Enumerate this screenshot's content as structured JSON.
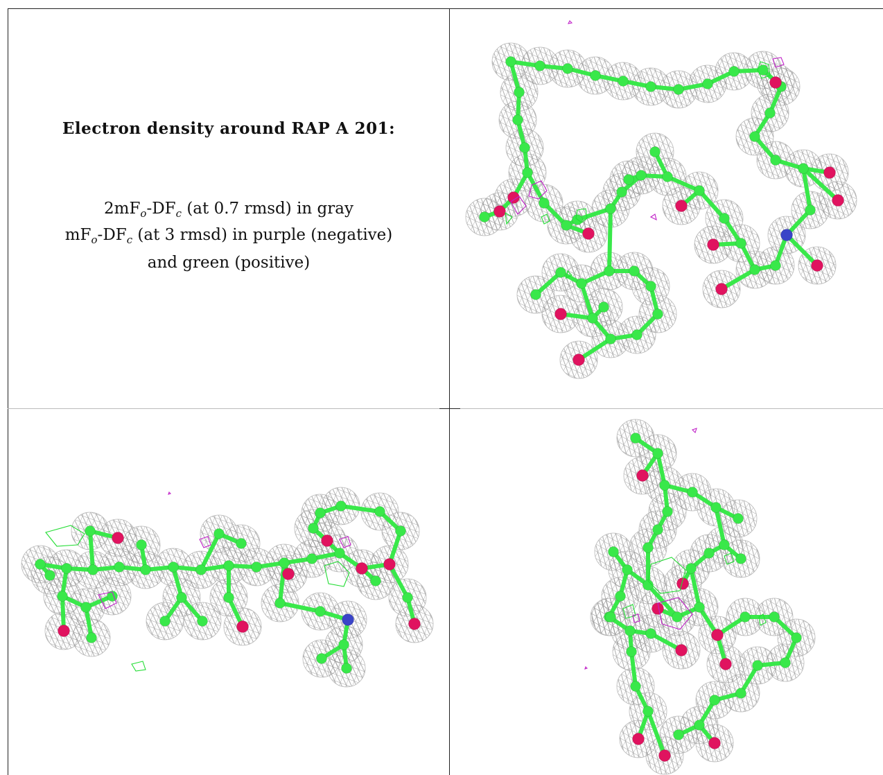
{
  "caption": {
    "title": "Electron density around RAP A 201:",
    "line1": {
      "prefix": "2mF",
      "sub1": "o",
      "mid": "-DF",
      "sub2": "c",
      "suffix": " (at 0.7 rmsd) in gray"
    },
    "line2": {
      "prefix": "mF",
      "sub1": "o",
      "mid": "-DF",
      "sub2": "c",
      "suffix": " (at 3 rmsd) in purple (negative)"
    },
    "line3": "and green (positive)"
  },
  "colors": {
    "mesh_2fofc": "#9a9a9a",
    "mesh_negative": "#c020c8",
    "mesh_positive": "#22dd33",
    "carbon": "#39e84a",
    "oxygen": "#e0135f",
    "nitrogen": "#3a44c8",
    "grid_lines": "#222222"
  },
  "panels": [
    {
      "name": "view-top-right"
    },
    {
      "name": "view-bottom-left"
    },
    {
      "name": "view-bottom-right"
    }
  ]
}
